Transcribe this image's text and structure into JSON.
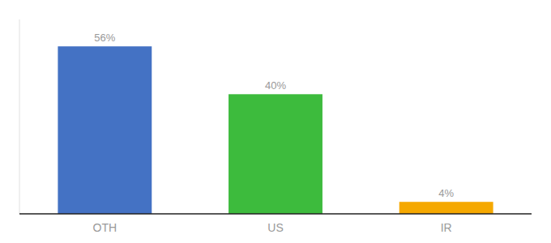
{
  "chart_data": {
    "type": "bar",
    "categories": [
      "OTH",
      "US",
      "IR"
    ],
    "values": [
      56,
      40,
      4
    ],
    "value_labels": [
      "56%",
      "40%",
      "4%"
    ],
    "colors": [
      "#4472c4",
      "#3dbb3d",
      "#f5a800"
    ],
    "ylim": [
      0,
      65
    ],
    "data_labels": true,
    "tick_labels": "x",
    "grid": false
  }
}
